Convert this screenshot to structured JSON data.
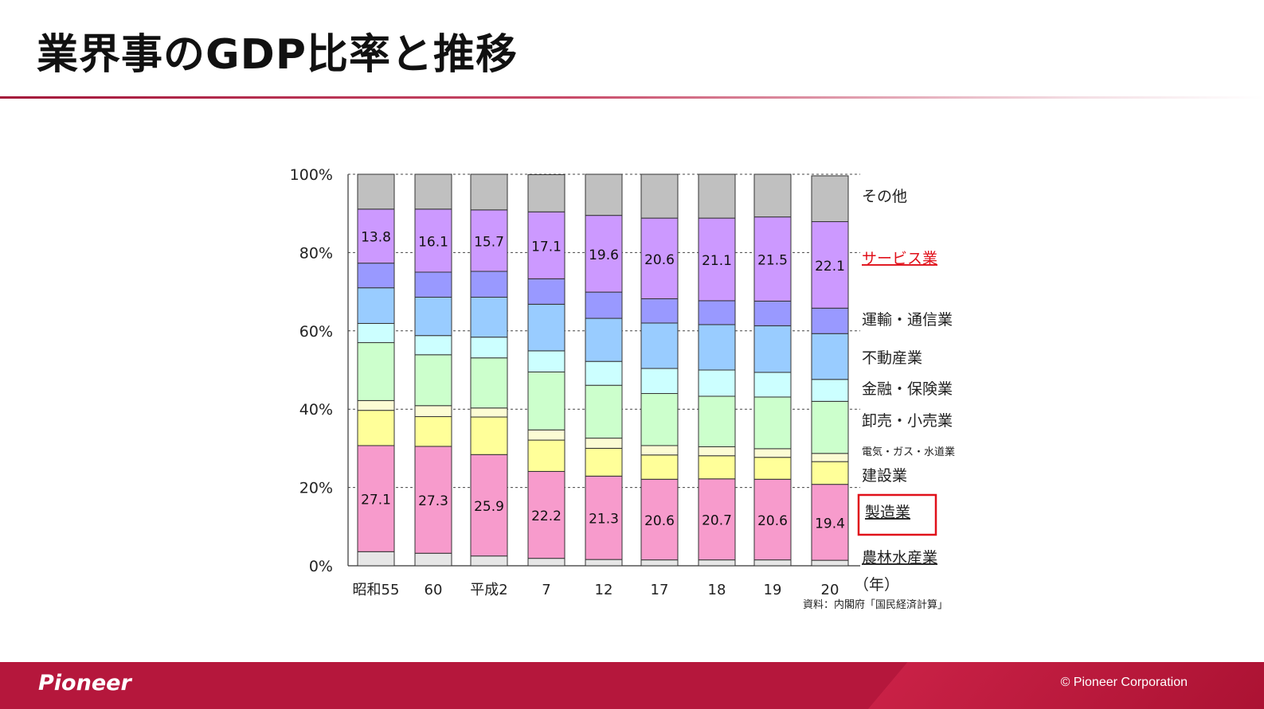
{
  "slide": {
    "title": "業界事のGDP比率と推移"
  },
  "footer": {
    "logo": "Pioneer",
    "copyright": "© Pioneer Corporation"
  },
  "colors": {
    "title_rule": "#a3163a",
    "footer_bg": "#b5173c",
    "highlight_box": "#e0101a",
    "service_label": "#e0101a"
  },
  "chart_data": {
    "type": "bar",
    "stacked": true,
    "ylim": [
      0,
      100
    ],
    "yticks": [
      "0%",
      "20%",
      "40%",
      "60%",
      "80%",
      "100%"
    ],
    "categories": [
      "昭和55",
      "60",
      "平成2",
      "7",
      "12",
      "17",
      "18",
      "19",
      "20"
    ],
    "x_unit": "（年）",
    "source": "資料：内閣府「国民経済計算」",
    "grid": "dashed horizontal",
    "legend_placement": "right",
    "series": [
      {
        "name": "農林水産業",
        "color": "#e6e6e6",
        "values": [
          3.6,
          3.2,
          2.5,
          1.9,
          1.6,
          1.5,
          1.5,
          1.5,
          1.4
        ],
        "labels": false
      },
      {
        "name": "製造業",
        "color": "#f79bcc",
        "values": [
          27.1,
          27.3,
          25.9,
          22.2,
          21.3,
          20.6,
          20.7,
          20.6,
          19.4
        ],
        "labels": true
      },
      {
        "name": "建設業",
        "color": "#ffff99",
        "values": [
          9.0,
          7.6,
          9.6,
          8.0,
          7.1,
          6.2,
          5.9,
          5.6,
          5.8
        ],
        "labels": false
      },
      {
        "name": "電気・ガス・水道業",
        "color": "#fcfcd4",
        "values": [
          2.5,
          2.8,
          2.3,
          2.6,
          2.6,
          2.4,
          2.3,
          2.2,
          2.1
        ],
        "labels": false
      },
      {
        "name": "卸売・小売業",
        "color": "#ccffcc",
        "values": [
          14.8,
          13.0,
          12.8,
          14.8,
          13.5,
          13.3,
          12.9,
          13.2,
          13.3
        ],
        "labels": false
      },
      {
        "name": "金融・保険業",
        "color": "#ccffff",
        "values": [
          4.9,
          4.9,
          5.3,
          5.4,
          6.1,
          6.4,
          6.7,
          6.3,
          5.6
        ],
        "labels": false
      },
      {
        "name": "不動産業",
        "color": "#99ccff",
        "values": [
          9.1,
          9.8,
          10.2,
          11.9,
          11.0,
          11.6,
          11.6,
          11.9,
          11.7
        ],
        "labels": false
      },
      {
        "name": "運輸・通信業",
        "color": "#9999ff",
        "values": [
          6.3,
          6.4,
          6.6,
          6.5,
          6.7,
          6.2,
          6.1,
          6.3,
          6.5
        ],
        "labels": false
      },
      {
        "name": "サービス業",
        "color": "#cc99ff",
        "values": [
          13.8,
          16.1,
          15.7,
          17.1,
          19.6,
          20.6,
          21.1,
          21.5,
          22.1
        ],
        "labels": true
      },
      {
        "name": "その他",
        "color": "#c0c0c0",
        "values": [
          8.9,
          8.9,
          9.1,
          9.5,
          10.5,
          11.2,
          11.2,
          10.9,
          11.7
        ],
        "labels": false
      }
    ],
    "legend": [
      "その他",
      "サービス業",
      "運輸・通信業",
      "不動産業",
      "金融・保険業",
      "卸売・小売業",
      "電気・ガス・水道業",
      "建設業",
      "製造業",
      "農林水産業"
    ],
    "highlighted": [
      "製造業"
    ],
    "emphasized": [
      "サービス業"
    ]
  }
}
